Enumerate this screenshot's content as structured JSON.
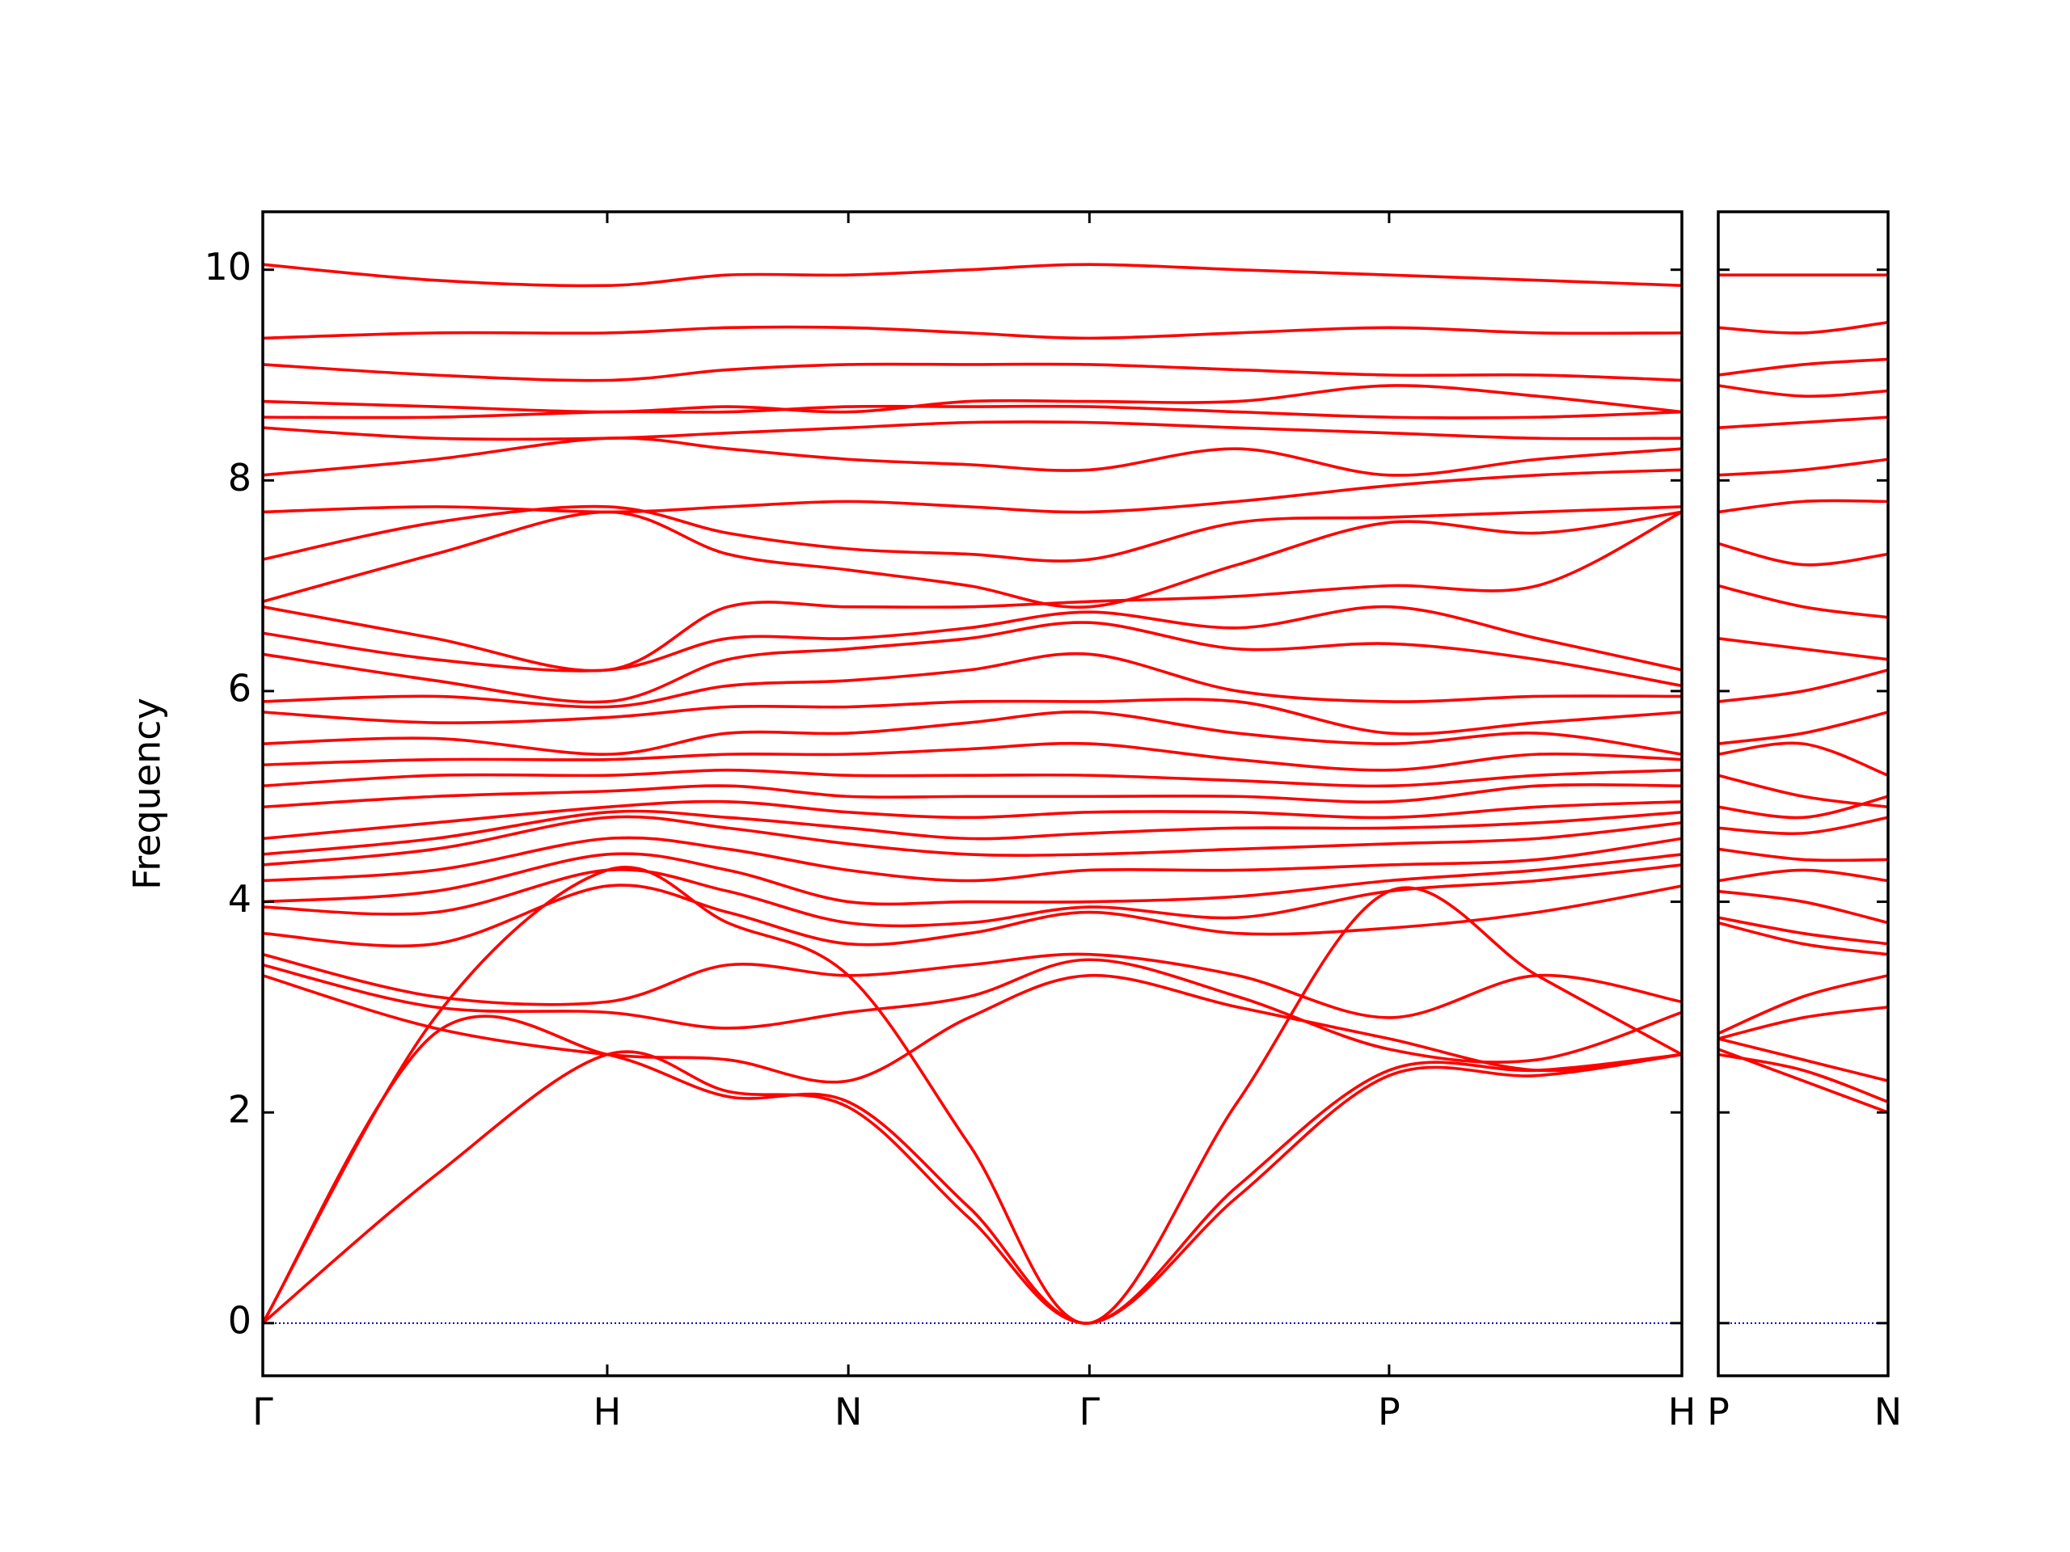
{
  "chart_data": [
    {
      "type": "line",
      "y_label": "Frequency",
      "color": "#ff0000",
      "xlim": [
        0,
        4.12
      ],
      "ylim": [
        -0.5,
        10.55
      ],
      "yticks": [
        0,
        2,
        4,
        6,
        8,
        10
      ],
      "show_ytick_labels": true,
      "xticks": [
        {
          "value": 0,
          "label": "Γ"
        },
        {
          "value": 1.0,
          "label": "H"
        },
        {
          "value": 1.7,
          "label": "N"
        },
        {
          "value": 2.4,
          "label": "Γ"
        },
        {
          "value": 3.27,
          "label": "P"
        },
        {
          "value": 4.12,
          "label": "H"
        }
      ],
      "hlines": [
        {
          "value": 0,
          "color": "#0000cc"
        }
      ],
      "x": [
        0,
        0.5,
        1.0,
        1.35,
        1.7,
        2.05,
        2.4,
        2.83,
        3.27,
        3.7,
        4.12
      ],
      "series": [
        {
          "values": [
            0,
            1.4,
            2.55,
            2.2,
            2.05,
            1.0,
            0,
            1.2,
            2.35,
            2.35,
            2.55
          ]
        },
        {
          "values": [
            0,
            2.75,
            2.55,
            2.15,
            2.1,
            1.1,
            0,
            1.3,
            2.4,
            2.4,
            2.55
          ]
        },
        {
          "values": [
            0,
            2.9,
            4.3,
            3.8,
            3.3,
            1.7,
            0,
            2.1,
            4.1,
            3.3,
            2.55
          ]
        },
        {
          "values": [
            3.3,
            2.8,
            2.55,
            2.5,
            2.3,
            2.9,
            3.3,
            3.0,
            2.7,
            2.4,
            2.55
          ]
        },
        {
          "values": [
            3.4,
            3.0,
            2.95,
            2.8,
            2.95,
            3.1,
            3.45,
            3.1,
            2.6,
            2.5,
            2.95
          ]
        },
        {
          "values": [
            3.5,
            3.1,
            3.05,
            3.4,
            3.3,
            3.4,
            3.5,
            3.3,
            2.9,
            3.3,
            3.05
          ]
        },
        {
          "values": [
            3.7,
            3.6,
            4.15,
            3.9,
            3.6,
            3.7,
            3.9,
            3.7,
            3.75,
            3.9,
            4.15
          ]
        },
        {
          "values": [
            3.95,
            3.9,
            4.3,
            4.1,
            3.8,
            3.8,
            3.95,
            3.85,
            4.1,
            4.2,
            4.35
          ]
        },
        {
          "values": [
            4.0,
            4.1,
            4.45,
            4.3,
            4.0,
            4.0,
            4.0,
            4.05,
            4.2,
            4.3,
            4.45
          ]
        },
        {
          "values": [
            4.2,
            4.3,
            4.6,
            4.5,
            4.3,
            4.2,
            4.3,
            4.3,
            4.35,
            4.4,
            4.6
          ]
        },
        {
          "values": [
            4.35,
            4.5,
            4.8,
            4.7,
            4.55,
            4.45,
            4.45,
            4.5,
            4.55,
            4.6,
            4.75
          ]
        },
        {
          "values": [
            4.45,
            4.6,
            4.85,
            4.8,
            4.7,
            4.6,
            4.65,
            4.7,
            4.7,
            4.75,
            4.85
          ]
        },
        {
          "values": [
            4.6,
            4.75,
            4.9,
            4.95,
            4.85,
            4.8,
            4.85,
            4.85,
            4.8,
            4.9,
            4.95
          ]
        },
        {
          "values": [
            4.9,
            5.0,
            5.05,
            5.1,
            5.0,
            5.0,
            5.0,
            5.0,
            4.95,
            5.1,
            5.1
          ]
        },
        {
          "values": [
            5.1,
            5.2,
            5.2,
            5.25,
            5.2,
            5.2,
            5.2,
            5.15,
            5.1,
            5.2,
            5.25
          ]
        },
        {
          "values": [
            5.3,
            5.35,
            5.35,
            5.4,
            5.4,
            5.45,
            5.5,
            5.35,
            5.25,
            5.4,
            5.35
          ]
        },
        {
          "values": [
            5.5,
            5.55,
            5.4,
            5.6,
            5.6,
            5.7,
            5.8,
            5.6,
            5.5,
            5.6,
            5.4
          ]
        },
        {
          "values": [
            5.8,
            5.7,
            5.75,
            5.85,
            5.85,
            5.9,
            5.9,
            5.9,
            5.6,
            5.7,
            5.8
          ]
        },
        {
          "values": [
            5.9,
            5.95,
            5.85,
            6.05,
            6.1,
            6.2,
            6.35,
            6.0,
            5.9,
            5.95,
            5.95
          ]
        },
        {
          "values": [
            6.35,
            6.1,
            5.9,
            6.3,
            6.4,
            6.5,
            6.65,
            6.4,
            6.45,
            6.3,
            6.05
          ]
        },
        {
          "values": [
            6.55,
            6.3,
            6.2,
            6.5,
            6.5,
            6.6,
            6.75,
            6.6,
            6.8,
            6.5,
            6.2
          ]
        },
        {
          "values": [
            6.8,
            6.5,
            6.2,
            6.8,
            6.8,
            6.8,
            6.85,
            6.9,
            7.0,
            7.0,
            7.7
          ]
        },
        {
          "values": [
            6.85,
            7.3,
            7.7,
            7.3,
            7.15,
            7.0,
            6.8,
            7.2,
            7.6,
            7.5,
            7.7
          ]
        },
        {
          "values": [
            7.25,
            7.6,
            7.75,
            7.5,
            7.35,
            7.3,
            7.25,
            7.6,
            7.65,
            7.7,
            7.75
          ]
        },
        {
          "values": [
            7.7,
            7.75,
            7.7,
            7.75,
            7.8,
            7.75,
            7.7,
            7.8,
            7.95,
            8.05,
            8.1
          ]
        },
        {
          "values": [
            8.05,
            8.2,
            8.4,
            8.3,
            8.2,
            8.15,
            8.1,
            8.3,
            8.05,
            8.2,
            8.3
          ]
        },
        {
          "values": [
            8.5,
            8.4,
            8.4,
            8.45,
            8.5,
            8.55,
            8.55,
            8.5,
            8.45,
            8.4,
            8.4
          ]
        },
        {
          "values": [
            8.6,
            8.6,
            8.65,
            8.65,
            8.7,
            8.7,
            8.7,
            8.65,
            8.6,
            8.6,
            8.65
          ]
        },
        {
          "values": [
            8.75,
            8.7,
            8.65,
            8.7,
            8.65,
            8.75,
            8.75,
            8.75,
            8.9,
            8.8,
            8.65
          ]
        },
        {
          "values": [
            9.1,
            9.0,
            8.95,
            9.05,
            9.1,
            9.1,
            9.1,
            9.05,
            9.0,
            9.0,
            8.95
          ]
        },
        {
          "values": [
            9.35,
            9.4,
            9.4,
            9.45,
            9.45,
            9.4,
            9.35,
            9.4,
            9.45,
            9.4,
            9.4
          ]
        },
        {
          "values": [
            10.05,
            9.9,
            9.85,
            9.95,
            9.95,
            10.0,
            10.05,
            10.0,
            9.95,
            9.9,
            9.85
          ]
        }
      ]
    },
    {
      "type": "line",
      "color": "#ff0000",
      "xlim": [
        0,
        0.49
      ],
      "ylim": [
        -0.5,
        10.55
      ],
      "yticks": [
        0,
        2,
        4,
        6,
        8,
        10
      ],
      "show_ytick_labels": false,
      "xticks": [
        {
          "value": 0,
          "label": "P"
        },
        {
          "value": 0.49,
          "label": "N"
        }
      ],
      "hlines": [
        {
          "value": 0,
          "color": "#0000cc"
        }
      ],
      "x": [
        0,
        0.245,
        0.49
      ],
      "series": [
        {
          "values": [
            2.6,
            2.3,
            2.0
          ]
        },
        {
          "values": [
            2.55,
            2.4,
            2.1
          ]
        },
        {
          "values": [
            2.7,
            2.5,
            2.3
          ]
        },
        {
          "values": [
            2.7,
            2.9,
            3.0
          ]
        },
        {
          "values": [
            2.75,
            3.1,
            3.3
          ]
        },
        {
          "values": [
            3.8,
            3.6,
            3.5
          ]
        },
        {
          "values": [
            3.85,
            3.7,
            3.6
          ]
        },
        {
          "values": [
            4.1,
            4.0,
            3.8
          ]
        },
        {
          "values": [
            4.2,
            4.3,
            4.2
          ]
        },
        {
          "values": [
            4.5,
            4.4,
            4.4
          ]
        },
        {
          "values": [
            4.7,
            4.65,
            4.8
          ]
        },
        {
          "values": [
            4.9,
            4.8,
            5.0
          ]
        },
        {
          "values": [
            5.2,
            5.0,
            4.9
          ]
        },
        {
          "values": [
            5.4,
            5.5,
            5.2
          ]
        },
        {
          "values": [
            5.5,
            5.6,
            5.8
          ]
        },
        {
          "values": [
            5.9,
            6.0,
            6.2
          ]
        },
        {
          "values": [
            6.5,
            6.4,
            6.3
          ]
        },
        {
          "values": [
            7.0,
            6.8,
            6.7
          ]
        },
        {
          "values": [
            7.4,
            7.2,
            7.3
          ]
        },
        {
          "values": [
            7.7,
            7.8,
            7.8
          ]
        },
        {
          "values": [
            8.05,
            8.1,
            8.2
          ]
        },
        {
          "values": [
            8.5,
            8.55,
            8.6
          ]
        },
        {
          "values": [
            8.9,
            8.8,
            8.85
          ]
        },
        {
          "values": [
            9.0,
            9.1,
            9.15
          ]
        },
        {
          "values": [
            9.45,
            9.4,
            9.5
          ]
        },
        {
          "values": [
            9.95,
            9.95,
            9.95
          ]
        }
      ]
    }
  ]
}
